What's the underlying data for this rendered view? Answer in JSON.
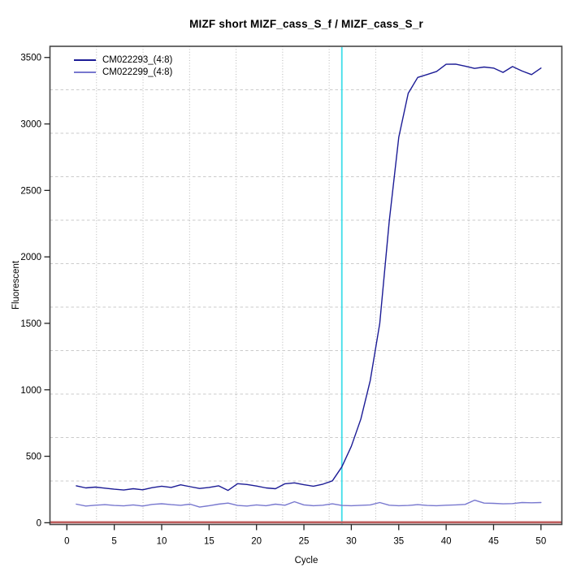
{
  "chart_data": {
    "type": "line",
    "title": "MIZF short MIZF_cass_S_f / MIZF_cass_S_r",
    "xlabel": "Cycle",
    "ylabel": "Fluorescent",
    "xlim": [
      0,
      50
    ],
    "ylim": [
      0,
      3500
    ],
    "xticks": [
      0,
      5,
      10,
      15,
      20,
      25,
      30,
      35,
      40,
      45,
      50
    ],
    "yticks": [
      0,
      500,
      1000,
      1500,
      2000,
      2500,
      3000,
      3500
    ],
    "grid": {
      "nx": 11,
      "ny": 11,
      "vertical_style": "dotted",
      "horizontal_style": "dashed",
      "vertical_color": "#b5b5b5",
      "horizontal_color": "#cbcbcb"
    },
    "legend_position": "top-left",
    "x": [
      1,
      2,
      3,
      4,
      5,
      6,
      7,
      8,
      9,
      10,
      11,
      12,
      13,
      14,
      15,
      16,
      17,
      18,
      19,
      20,
      21,
      22,
      23,
      24,
      25,
      26,
      27,
      28,
      29,
      30,
      31,
      32,
      33,
      34,
      35,
      36,
      37,
      38,
      39,
      40,
      41,
      42,
      43,
      44,
      45,
      46,
      47,
      48,
      49,
      50
    ],
    "series": [
      {
        "name": "CM022293_(4:8)",
        "color": "#1c1c96",
        "values": [
          278,
          262,
          268,
          260,
          252,
          246,
          256,
          248,
          264,
          275,
          266,
          285,
          271,
          258,
          266,
          278,
          243,
          294,
          288,
          276,
          262,
          256,
          293,
          300,
          286,
          275,
          290,
          315,
          420,
          575,
          780,
          1070,
          1500,
          2270,
          2900,
          3230,
          3350,
          3372,
          3395,
          3449,
          3450,
          3435,
          3418,
          3428,
          3420,
          3388,
          3432,
          3398,
          3371,
          3420
        ]
      },
      {
        "name": "CM022299_(4:8)",
        "color": "#7878cf",
        "values": [
          140,
          126,
          132,
          136,
          130,
          127,
          134,
          126,
          138,
          143,
          136,
          131,
          140,
          118,
          128,
          140,
          148,
          130,
          126,
          134,
          128,
          140,
          132,
          158,
          134,
          128,
          132,
          142,
          130,
          128,
          131,
          134,
          152,
          132,
          128,
          130,
          136,
          130,
          128,
          132,
          134,
          138,
          170,
          148,
          146,
          142,
          144,
          152,
          150,
          152
        ]
      }
    ],
    "threshold_line": {
      "orientation": "vertical",
      "x": 29,
      "color": "#3fdde9"
    },
    "zero_line": {
      "orientation": "horizontal",
      "y": 0,
      "color": "#bf5e5e"
    }
  }
}
